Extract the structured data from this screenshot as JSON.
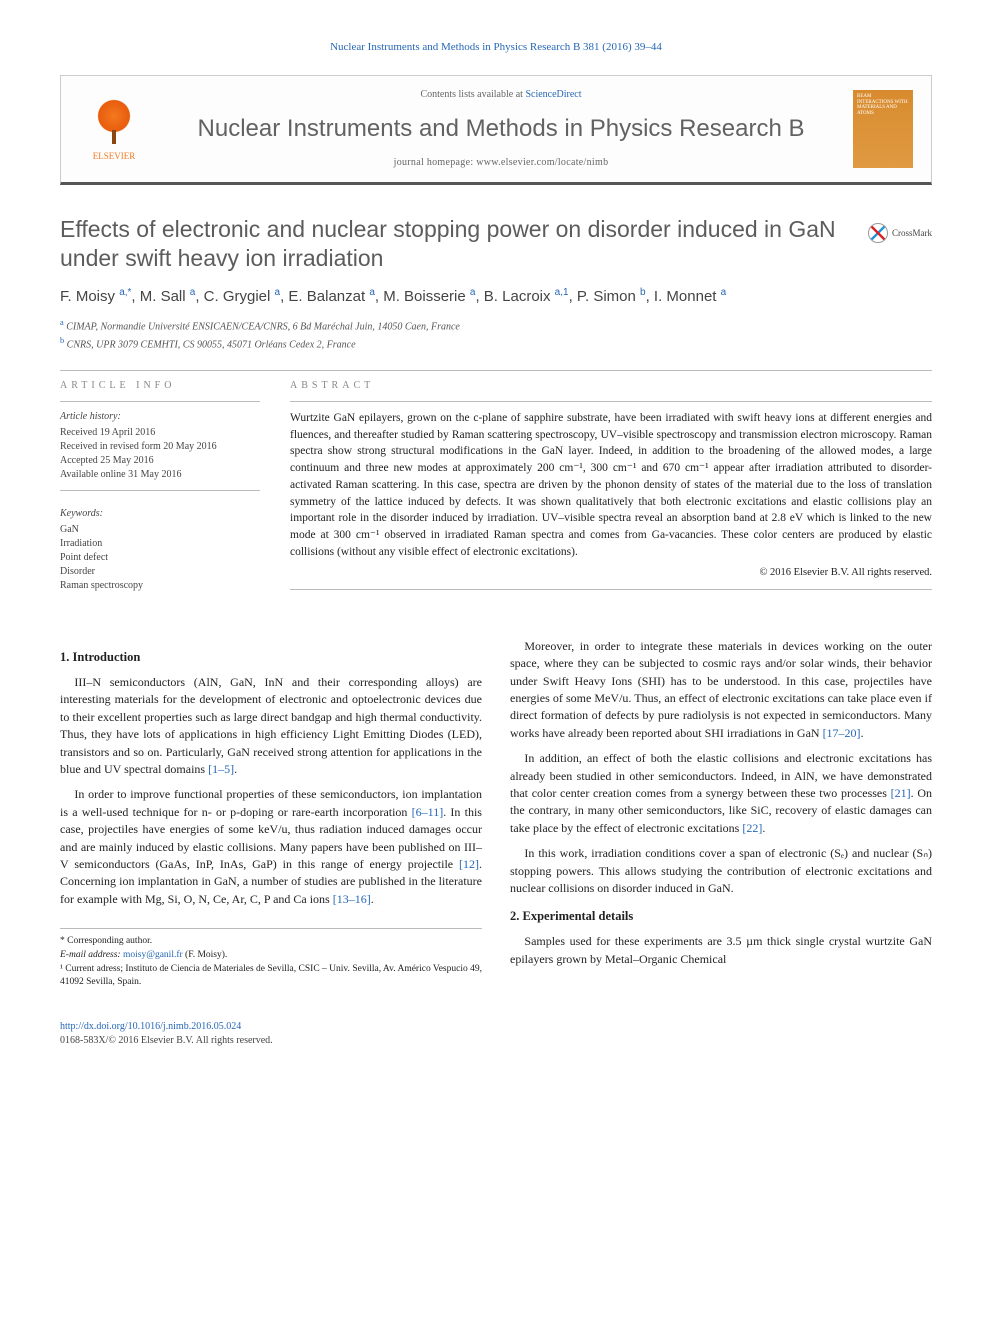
{
  "citation_header": "Nuclear Instruments and Methods in Physics Research B 381 (2016) 39–44",
  "header": {
    "contents_prefix": "Contents lists available at ",
    "contents_link": "ScienceDirect",
    "journal_name": "Nuclear Instruments and Methods in Physics Research B",
    "homepage_label": "journal homepage: www.elsevier.com/locate/nimb",
    "publisher_logo_label": "ELSEVIER",
    "cover_text": "BEAM INTERACTIONS WITH MATERIALS AND ATOMS"
  },
  "crossmark_label": "CrossMark",
  "title": "Effects of electronic and nuclear stopping power on disorder induced in GaN under swift heavy ion irradiation",
  "authors_html": "F. Moisy <sup>a,*</sup>, M. Sall <sup>a</sup>, C. Grygiel <sup>a</sup>, E. Balanzat <sup>a</sup>, M. Boisserie <sup>a</sup>, B. Lacroix <sup>a,1</sup>, P. Simon <sup>b</sup>, I. Monnet <sup>a</sup>",
  "affiliations": {
    "a": "CIMAP, Normandie Université ENSICAEN/CEA/CNRS, 6 Bd Maréchal Juin, 14050 Caen, France",
    "b": "CNRS, UPR 3079 CEMHTI, CS 90055, 45071 Orléans Cedex 2, France"
  },
  "article_info": {
    "label": "ARTICLE INFO",
    "history_label": "Article history:",
    "history": [
      "Received 19 April 2016",
      "Received in revised form 20 May 2016",
      "Accepted 25 May 2016",
      "Available online 31 May 2016"
    ],
    "keywords_label": "Keywords:",
    "keywords": [
      "GaN",
      "Irradiation",
      "Point defect",
      "Disorder",
      "Raman spectroscopy"
    ]
  },
  "abstract": {
    "label": "ABSTRACT",
    "text": "Wurtzite GaN epilayers, grown on the c-plane of sapphire substrate, have been irradiated with swift heavy ions at different energies and fluences, and thereafter studied by Raman scattering spectroscopy, UV–visible spectroscopy and transmission electron microscopy. Raman spectra show strong structural modifications in the GaN layer. Indeed, in addition to the broadening of the allowed modes, a large continuum and three new modes at approximately 200 cm⁻¹, 300 cm⁻¹ and 670 cm⁻¹ appear after irradiation attributed to disorder-activated Raman scattering. In this case, spectra are driven by the phonon density of states of the material due to the loss of translation symmetry of the lattice induced by defects. It was shown qualitatively that both electronic excitations and elastic collisions play an important role in the disorder induced by irradiation. UV–visible spectra reveal an absorption band at 2.8 eV which is linked to the new mode at 300 cm⁻¹ observed in irradiated Raman spectra and comes from Ga-vacancies. These color centers are produced by elastic collisions (without any visible effect of electronic excitations).",
    "copyright": "© 2016 Elsevier B.V. All rights reserved."
  },
  "sections": {
    "intro_heading": "1. Introduction",
    "intro_p1": "III–N semiconductors (AlN, GaN, InN and their corresponding alloys) are interesting materials for the development of electronic and optoelectronic devices due to their excellent properties such as large direct bandgap and high thermal conductivity. Thus, they have lots of applications in high efficiency Light Emitting Diodes (LED), transistors and so on. Particularly, GaN received strong attention for applications in the blue and UV spectral domains ",
    "intro_p1_cite": "[1–5]",
    "intro_p1_suffix": ".",
    "intro_p2_a": "In order to improve functional properties of these semiconductors, ion implantation is a well-used technique for n- or p-doping or rare-earth incorporation ",
    "intro_p2_cite1": "[6–11]",
    "intro_p2_b": ". In this case, projectiles have energies of some keV/u, thus radiation induced damages occur and are mainly induced by elastic collisions. Many papers have been published on III–V semiconductors (GaAs, InP, InAs, GaP) in this range of energy projectile ",
    "intro_p2_cite2": "[12]",
    "intro_p2_c": ". Concerning ion implantation in GaN, a number of studies are published in the literature for example with Mg, Si, O, N, Ce, Ar, C, P and Ca ions ",
    "intro_p2_cite3": "[13–16]",
    "intro_p2_d": ".",
    "intro_p3_a": "Moreover, in order to integrate these materials in devices working on the outer space, where they can be subjected to cosmic rays and/or solar winds, their behavior under Swift Heavy Ions (SHI) has to be understood. In this case, projectiles have energies of some MeV/u. Thus, an effect of electronic excitations can take place even if direct formation of defects by pure radiolysis is not expected in semiconductors. Many works have already been reported about SHI irradiations in GaN ",
    "intro_p3_cite": "[17–20]",
    "intro_p3_b": ".",
    "intro_p4_a": "In addition, an effect of both the elastic collisions and electronic excitations has already been studied in other semiconductors. Indeed, in AlN, we have demonstrated that color center creation comes from a synergy between these two processes ",
    "intro_p4_cite1": "[21]",
    "intro_p4_b": ". On the contrary, in many other semiconductors, like SiC, recovery of elastic damages can take place by the effect of electronic excitations ",
    "intro_p4_cite2": "[22]",
    "intro_p4_c": ".",
    "intro_p5": "In this work, irradiation conditions cover a span of electronic (Sₑ) and nuclear (Sₙ) stopping powers. This allows studying the contribution of electronic excitations and nuclear collisions on disorder induced in GaN.",
    "exp_heading": "2. Experimental details",
    "exp_p1": "Samples used for these experiments are 3.5 µm thick single crystal wurtzite GaN epilayers grown by Metal–Organic Chemical"
  },
  "footnotes": {
    "corr_label": "* Corresponding author.",
    "email_label": "E-mail address: ",
    "email": "moisy@ganil.fr",
    "email_suffix": " (F. Moisy).",
    "note1": "¹ Current adress; Instituto de Ciencia de Materiales de Sevilla, CSIC – Univ. Sevilla, Av. Américo Vespucio 49, 41092 Sevilla, Spain."
  },
  "doi": {
    "url": "http://dx.doi.org/10.1016/j.nimb.2016.05.024",
    "issn_line": "0168-583X/© 2016 Elsevier B.V. All rights reserved."
  },
  "colors": {
    "link": "#2668b5",
    "publisher_orange": "#f47920",
    "heading_gray": "#5c5c5c"
  }
}
